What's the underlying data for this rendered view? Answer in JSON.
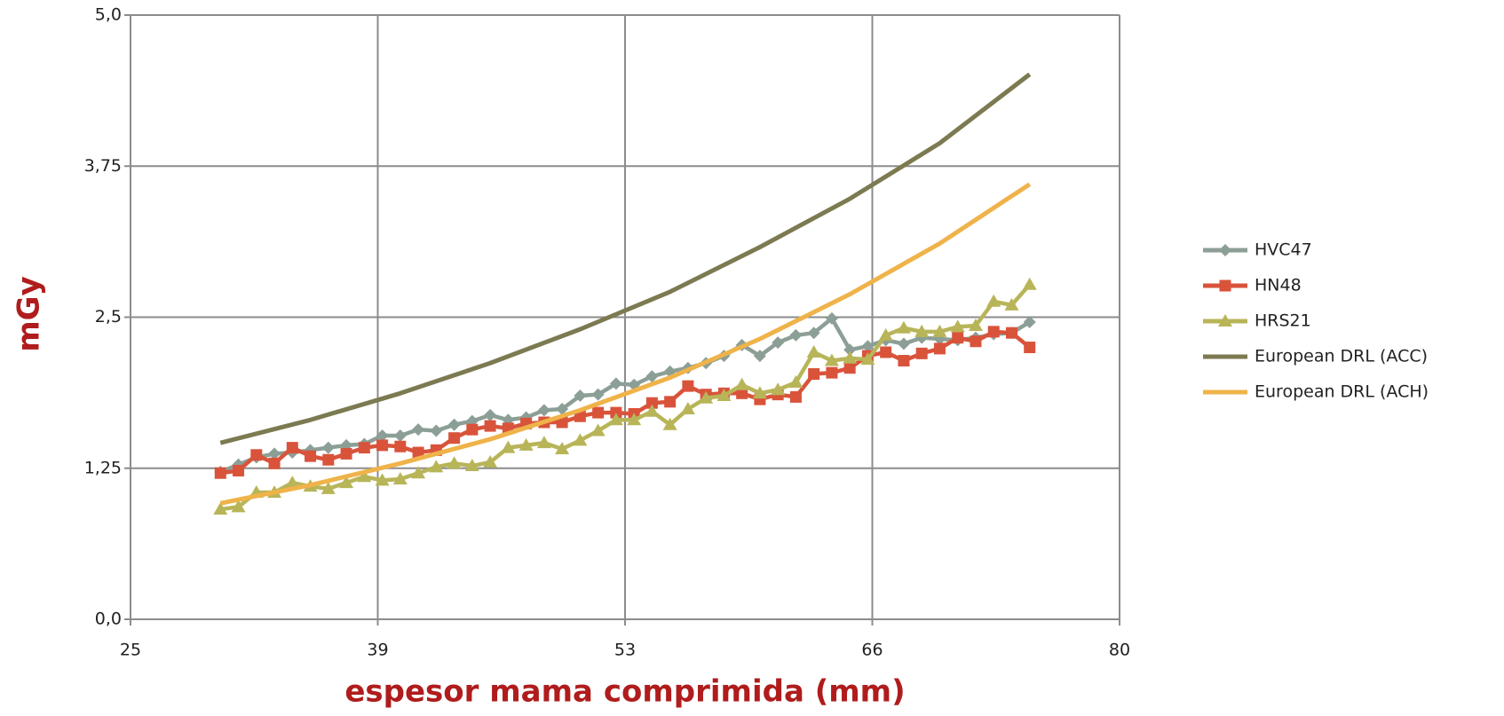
{
  "chart_data": {
    "type": "line",
    "xlabel": "espesor mama comprimida (mm)",
    "ylabel": "mGy",
    "xlim": [
      25,
      80
    ],
    "xticks": [
      25,
      {
        "value": 38.75,
        "label": "39"
      },
      {
        "value": 52.5,
        "label": "53"
      },
      {
        "value": 66.25,
        "label": "66"
      },
      80
    ],
    "ylim": [
      0,
      5
    ],
    "yticks": [
      {
        "value": 0,
        "label": "0,0"
      },
      {
        "value": 1.25,
        "label": "1,25"
      },
      {
        "value": 2.5,
        "label": "2,5"
      },
      {
        "value": 3.75,
        "label": "3,75"
      },
      {
        "value": 5,
        "label": "5,0"
      }
    ],
    "grid": true,
    "legend": "right",
    "series": [
      {
        "name": "HVC47",
        "color": "#8c9f96",
        "marker": "diamond",
        "x": [
          30,
          31,
          32,
          33,
          34,
          35,
          36,
          37,
          38,
          39,
          40,
          41,
          42,
          43,
          44,
          45,
          46,
          47,
          48,
          49,
          50,
          51,
          52,
          53,
          54,
          55,
          56,
          57,
          58,
          59,
          60,
          61,
          62,
          63,
          64,
          65,
          66,
          67,
          68,
          69,
          70,
          71,
          72,
          73,
          74,
          75
        ],
        "values": [
          1.22,
          1.28,
          1.34,
          1.37,
          1.38,
          1.4,
          1.42,
          1.44,
          1.45,
          1.52,
          1.52,
          1.57,
          1.56,
          1.61,
          1.64,
          1.69,
          1.65,
          1.67,
          1.73,
          1.74,
          1.85,
          1.86,
          1.95,
          1.94,
          2.01,
          2.05,
          2.08,
          2.12,
          2.18,
          2.27,
          2.18,
          2.29,
          2.35,
          2.37,
          2.49,
          2.23,
          2.26,
          2.31,
          2.28,
          2.33,
          2.32,
          2.31,
          2.33,
          2.36,
          2.37,
          2.46
        ]
      },
      {
        "name": "HN48",
        "color": "#d9533b",
        "marker": "square",
        "x": [
          30,
          31,
          32,
          33,
          34,
          35,
          36,
          37,
          38,
          39,
          40,
          41,
          42,
          43,
          44,
          45,
          46,
          47,
          48,
          49,
          50,
          51,
          52,
          53,
          54,
          55,
          56,
          57,
          58,
          59,
          60,
          61,
          62,
          63,
          64,
          65,
          66,
          67,
          68,
          69,
          70,
          71,
          72,
          73,
          74,
          75
        ],
        "values": [
          1.21,
          1.23,
          1.36,
          1.29,
          1.42,
          1.35,
          1.32,
          1.37,
          1.42,
          1.44,
          1.43,
          1.38,
          1.4,
          1.5,
          1.57,
          1.6,
          1.58,
          1.62,
          1.63,
          1.63,
          1.68,
          1.71,
          1.71,
          1.7,
          1.79,
          1.8,
          1.93,
          1.86,
          1.87,
          1.87,
          1.82,
          1.86,
          1.84,
          2.03,
          2.04,
          2.08,
          2.18,
          2.21,
          2.14,
          2.2,
          2.24,
          2.33,
          2.3,
          2.38,
          2.37,
          2.25
        ]
      },
      {
        "name": "HRS21",
        "color": "#b8b559",
        "marker": "triangle",
        "x": [
          30,
          31,
          32,
          33,
          34,
          35,
          36,
          37,
          38,
          39,
          40,
          41,
          42,
          43,
          44,
          45,
          46,
          47,
          48,
          49,
          50,
          51,
          52,
          53,
          54,
          55,
          56,
          57,
          58,
          59,
          60,
          61,
          62,
          63,
          64,
          65,
          66,
          67,
          68,
          69,
          70,
          71,
          72,
          73,
          74,
          75
        ],
        "values": [
          0.91,
          0.93,
          1.05,
          1.05,
          1.13,
          1.1,
          1.08,
          1.13,
          1.18,
          1.15,
          1.16,
          1.21,
          1.26,
          1.29,
          1.27,
          1.3,
          1.42,
          1.44,
          1.46,
          1.41,
          1.48,
          1.56,
          1.65,
          1.65,
          1.72,
          1.61,
          1.74,
          1.83,
          1.85,
          1.94,
          1.87,
          1.9,
          1.96,
          2.21,
          2.14,
          2.16,
          2.15,
          2.35,
          2.41,
          2.38,
          2.38,
          2.42,
          2.43,
          2.63,
          2.6,
          2.77
        ]
      },
      {
        "name": "European DRL (ACC)",
        "color": "#7b7a51",
        "marker": "none",
        "x": [
          30,
          35,
          40,
          45,
          50,
          55,
          60,
          65,
          70,
          75
        ],
        "values": [
          1.46,
          1.65,
          1.87,
          2.12,
          2.4,
          2.71,
          3.08,
          3.48,
          3.94,
          4.51
        ]
      },
      {
        "name": "European DRL (ACH)",
        "color": "#efb34a",
        "marker": "none",
        "x": [
          30,
          35,
          40,
          45,
          50,
          55,
          60,
          65,
          70,
          75
        ],
        "values": [
          0.96,
          1.11,
          1.29,
          1.49,
          1.73,
          2.0,
          2.32,
          2.69,
          3.11,
          3.6
        ]
      }
    ]
  }
}
